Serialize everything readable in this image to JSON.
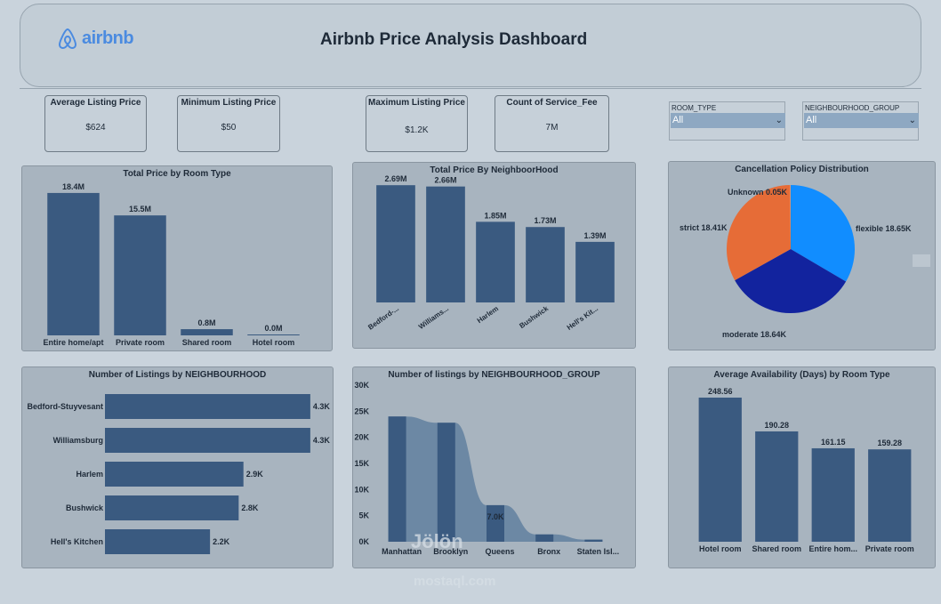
{
  "header": {
    "logo_text": "airbnb",
    "title": "Airbnb Price Analysis Dashboard"
  },
  "cards": [
    {
      "label": "Average Listing Price",
      "value": "$624"
    },
    {
      "label": "Minimum Listing Price",
      "value": "$50"
    },
    {
      "label": "Maximum Listing Price",
      "value": "$1.2K"
    },
    {
      "label": "Count of Service_Fee",
      "value": "7M"
    }
  ],
  "slicers": [
    {
      "label": "ROOM_TYPE",
      "value": "All"
    },
    {
      "label": "NEIGHBOURHOOD_GROUP",
      "value": "All"
    }
  ],
  "watermark": {
    "line1": "Jölön",
    "line2": "mostaql.com"
  },
  "colors": {
    "bar": "#3a5a80",
    "pie_blue": "#118dff",
    "pie_navy": "#12239e",
    "pie_orange": "#e66c37"
  },
  "chart_data": [
    {
      "id": "price_room",
      "type": "bar",
      "title": "Total Price by Room Type",
      "categories": [
        "Entire home/apt",
        "Private room",
        "Shared room",
        "Hotel room"
      ],
      "values": [
        18.4,
        15.5,
        0.8,
        0.0
      ],
      "labels": [
        "18.4M",
        "15.5M",
        "0.8M",
        "0.0M"
      ],
      "ylim": [
        0,
        20
      ]
    },
    {
      "id": "price_hood",
      "type": "bar",
      "title": "Total Price By NeighboorHood",
      "categories": [
        "Bedford-...",
        "Williams...",
        "Harlem",
        "Bushwick",
        "Hell's Kit..."
      ],
      "values": [
        2.69,
        2.66,
        1.85,
        1.73,
        1.39
      ],
      "labels": [
        "2.69M",
        "2.66M",
        "1.85M",
        "1.73M",
        "1.39M"
      ],
      "ylim": [
        0,
        3
      ]
    },
    {
      "id": "cancel",
      "type": "pie",
      "title": "Cancellation Policy Distribution",
      "slices": [
        {
          "name": "flexible",
          "value": 18.65,
          "label": "flexible 18.65K"
        },
        {
          "name": "moderate",
          "value": 18.64,
          "label": "moderate 18.64K"
        },
        {
          "name": "strict",
          "value": 18.41,
          "label": "strict 18.41K"
        },
        {
          "name": "Unknown",
          "value": 0.05,
          "label": "Unknown 0.05K"
        }
      ]
    },
    {
      "id": "listings_hood",
      "type": "bar",
      "orientation": "horizontal",
      "title": "Number of Listings by NEIGHBOURHOOD",
      "categories": [
        "Bedford-Stuyvesant",
        "Williamsburg",
        "Harlem",
        "Bushwick",
        "Hell's Kitchen"
      ],
      "values": [
        4.3,
        4.3,
        2.9,
        2.8,
        2.2
      ],
      "labels": [
        "4.3K",
        "4.3K",
        "2.9K",
        "2.8K",
        "2.2K"
      ],
      "xlim": [
        0,
        4.6
      ]
    },
    {
      "id": "listings_group",
      "type": "bar",
      "title": "Number of listings by NEIGHBOURHOOD_GROUP",
      "categories": [
        "Manhattan",
        "Brooklyn",
        "Queens",
        "Bronx",
        "Staten Isl..."
      ],
      "values": [
        24000,
        22800,
        7000,
        1400,
        400
      ],
      "data_label": {
        "index": 2,
        "text": "7.0K"
      },
      "yticks": [
        "0K",
        "5K",
        "10K",
        "15K",
        "20K",
        "25K",
        "30K"
      ],
      "ylim": [
        0,
        30000
      ]
    },
    {
      "id": "availability",
      "type": "bar",
      "title": "Average Availability (Days) by Room Type",
      "categories": [
        "Hotel room",
        "Shared room",
        "Entire hom...",
        "Private room"
      ],
      "values": [
        248.56,
        190.28,
        161.15,
        159.28
      ],
      "labels": [
        "248.56",
        "190.28",
        "161.15",
        "159.28"
      ],
      "ylim": [
        0,
        270
      ]
    }
  ]
}
